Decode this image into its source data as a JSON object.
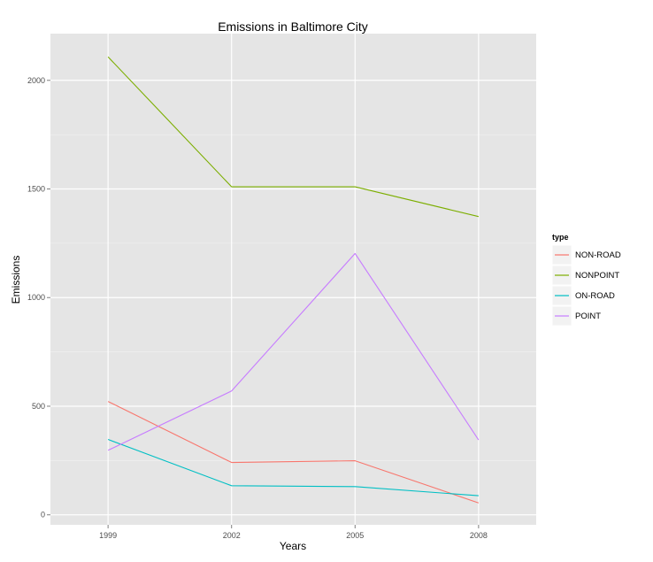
{
  "chart_data": {
    "type": "line",
    "title": "Emissions in Baltimore City",
    "xlabel": "Years",
    "ylabel": "Emissions",
    "x": [
      1999,
      2002,
      2005,
      2008
    ],
    "x_tick_labels": [
      "1999",
      "2002",
      "2005",
      "2008"
    ],
    "y_ticks": [
      0,
      500,
      1000,
      1500,
      2000
    ],
    "y_tick_labels": [
      "0",
      "500",
      "1000",
      "1500",
      "2000"
    ],
    "xlim": [
      1997.6,
      2009.4
    ],
    "ylim": [
      -46,
      2215
    ],
    "grid": true,
    "legend_title": "type",
    "legend_position": "right",
    "series": [
      {
        "name": "NON-ROAD",
        "color": "#F8766D",
        "values": [
          522,
          241,
          249,
          55
        ]
      },
      {
        "name": "NONPOINT",
        "color": "#7CAE00",
        "values": [
          2108,
          1510,
          1510,
          1373
        ]
      },
      {
        "name": "ON-ROAD",
        "color": "#00BFC4",
        "values": [
          347,
          134,
          130,
          88
        ]
      },
      {
        "name": "POINT",
        "color": "#C77CFF",
        "values": [
          297,
          570,
          1203,
          345
        ]
      }
    ]
  }
}
